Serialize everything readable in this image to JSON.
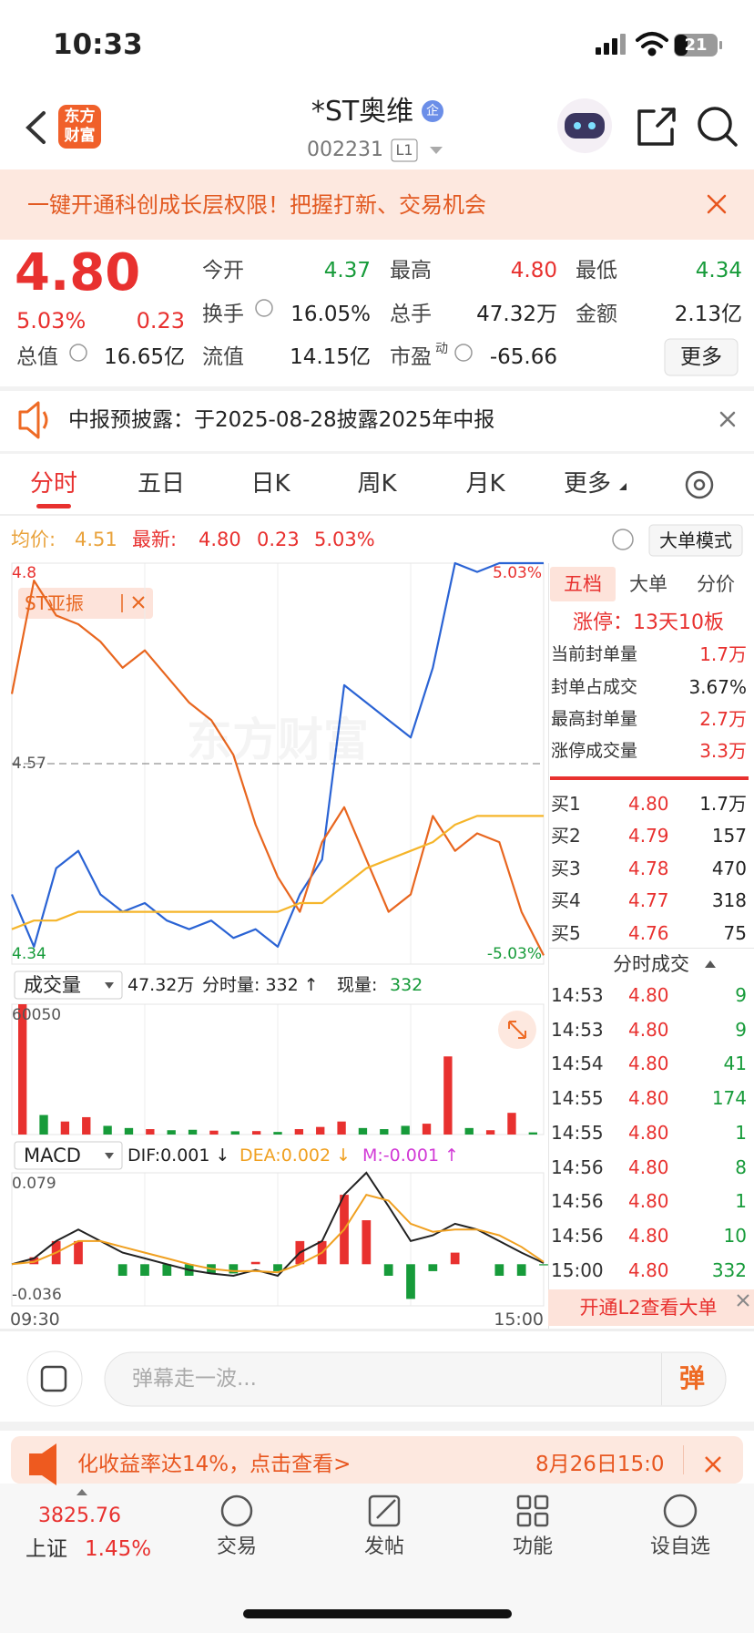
{
  "status_bar": {
    "time": "10:33",
    "battery": "21"
  },
  "header": {
    "logo": "东方财富",
    "title": "*ST奥维",
    "badge": "企",
    "code": "002231",
    "level": "L1"
  },
  "banner": {
    "text": "一键开通科创成长层权限！把握打新、交易机会"
  },
  "quote": {
    "price": "4.80",
    "change_pct": "5.03%",
    "change": "0.23",
    "fields": [
      {
        "label": "今开",
        "value": "4.37"
      },
      {
        "label": "最高",
        "value": "4.80"
      },
      {
        "label": "最低",
        "value": "4.34"
      },
      {
        "label": "换手",
        "value": "16.05%"
      },
      {
        "label": "总手",
        "value": "47.32万"
      },
      {
        "label": "金额",
        "value": "2.13亿"
      },
      {
        "label": "总值",
        "value": "16.65亿"
      },
      {
        "label": "流值",
        "value": "14.15亿"
      },
      {
        "label": "市盈",
        "sup": "动",
        "value": "-65.66"
      }
    ],
    "more": "更多"
  },
  "notice": {
    "text": "中报预披露：于2025-08-28披露2025年中报"
  },
  "tabs": [
    "分时",
    "五日",
    "日K",
    "周K",
    "月K",
    "更多"
  ],
  "chart_info": {
    "avg_label": "均价:",
    "avg": "4.51",
    "last_label": "最新:",
    "last": "4.80",
    "change": "0.23",
    "change_pct": "5.03%",
    "mode": "大单模式"
  },
  "watermark": "东方财富",
  "chart_data": [
    {
      "type": "line",
      "ylim": [
        4.34,
        4.8
      ],
      "yticks": [
        4.34,
        4.57,
        4.8
      ],
      "y2lim": [
        -5.03,
        5.03
      ],
      "y2ticks": [
        {
          "value": -5.03,
          "label": "-5.03%"
        },
        {
          "value": 5.03,
          "label": "5.03%"
        }
      ],
      "series": [
        {
          "color": "#2a63d4",
          "values": [
            4.42,
            4.36,
            4.45,
            4.47,
            4.42,
            4.4,
            4.41,
            4.39,
            4.38,
            4.39,
            4.37,
            4.38,
            4.36,
            4.42,
            4.46,
            4.66,
            4.64,
            4.62,
            4.6,
            4.68,
            4.8,
            4.79,
            4.8,
            4.8,
            4.8
          ]
        },
        {
          "name": "ST亚振",
          "color": "#e8661f",
          "values": [
            4.65,
            4.78,
            4.74,
            4.73,
            4.71,
            4.68,
            4.7,
            4.67,
            4.64,
            4.62,
            4.58,
            4.5,
            4.44,
            4.4,
            4.48,
            4.52,
            4.46,
            4.4,
            4.42,
            4.51,
            4.47,
            4.49,
            4.48,
            4.4,
            4.35
          ]
        },
        {
          "color": "#f5b52a",
          "values": [
            4.38,
            4.39,
            4.39,
            4.4,
            4.4,
            4.4,
            4.4,
            4.4,
            4.4,
            4.4,
            4.4,
            4.4,
            4.4,
            4.41,
            4.41,
            4.43,
            4.45,
            4.46,
            4.47,
            4.48,
            4.5,
            4.51,
            4.51,
            4.51,
            4.51
          ]
        }
      ]
    },
    {
      "type": "bar",
      "title": "成交量",
      "header": [
        "47.32万",
        "分时量: 332 ↑",
        "现量:",
        "332"
      ],
      "ylim": [
        0,
        60050
      ],
      "yticks": [
        60050
      ],
      "values": [
        60050,
        9000,
        6000,
        8000,
        4000,
        3000,
        2500,
        2000,
        2200,
        1800,
        1500,
        1600,
        1200,
        2500,
        3500,
        6000,
        3000,
        2500,
        4000,
        5000,
        36000,
        3000,
        2000,
        10000,
        1000
      ],
      "colors": [
        "#e8312f",
        "#179b3a",
        "#e8312f",
        "#e8312f",
        "#179b3a",
        "#179b3a",
        "#e8312f",
        "#179b3a",
        "#179b3a",
        "#e8312f",
        "#179b3a",
        "#e8312f",
        "#179b3a",
        "#e8312f",
        "#e8312f",
        "#e8312f",
        "#179b3a",
        "#179b3a",
        "#179b3a",
        "#e8312f",
        "#e8312f",
        "#179b3a",
        "#e8312f",
        "#e8312f",
        "#179b3a"
      ]
    },
    {
      "type": "macd",
      "title": "MACD",
      "indicators": [
        "DIF:0.001 ↓",
        "DEA:0.002 ↓",
        "M:-0.001 ↑"
      ],
      "indicator_colors": [
        "#222222",
        "#f0a020",
        "#d23bd6"
      ],
      "categories": [
        "09:30",
        null,
        null,
        null,
        null,
        null,
        null,
        null,
        null,
        null,
        null,
        null,
        null,
        null,
        null,
        null,
        null,
        null,
        null,
        null,
        null,
        null,
        null,
        null,
        "15:00"
      ],
      "ylim": [
        -0.036,
        0.079
      ],
      "yticks": [
        0.079,
        -0.036
      ],
      "up_color": "#e8312f",
      "down_color": "#179b3a",
      "series": [
        {
          "color": "#222222",
          "values": [
            0,
            0.005,
            0.02,
            0.03,
            0.02,
            0.01,
            0.005,
            0,
            -0.005,
            -0.008,
            -0.01,
            -0.005,
            -0.01,
            0.01,
            0.02,
            0.06,
            0.079,
            0.05,
            0.02,
            0.025,
            0.035,
            0.03,
            0.02,
            0.01,
            0.001
          ]
        },
        {
          "color": "#f0a020",
          "values": [
            0,
            0.002,
            0.01,
            0.02,
            0.02,
            0.015,
            0.01,
            0.005,
            0,
            -0.004,
            -0.006,
            -0.006,
            -0.007,
            0,
            0.01,
            0.03,
            0.06,
            0.055,
            0.035,
            0.028,
            0.03,
            0.03,
            0.025,
            0.015,
            0.002
          ]
        }
      ],
      "bars": [
        0,
        0.006,
        0.02,
        0.02,
        0,
        -0.01,
        -0.01,
        -0.01,
        -0.01,
        -0.008,
        -0.008,
        0.002,
        -0.006,
        0.02,
        0.02,
        0.06,
        0.038,
        -0.01,
        -0.03,
        -0.006,
        0.01,
        0,
        -0.01,
        -0.01,
        -0.001
      ]
    }
  ],
  "order_book": {
    "tabs": [
      "五档",
      "大单",
      "分价"
    ],
    "limit": "涨停：13天10板",
    "stats": [
      [
        "当前封单量",
        "1.7万"
      ],
      [
        "封单占成交",
        "3.67%"
      ],
      [
        "最高封单量",
        "2.7万"
      ],
      [
        "涨停成交量",
        "3.3万"
      ]
    ],
    "bids": [
      [
        "买1",
        "4.80",
        "1.7万"
      ],
      [
        "买2",
        "4.79",
        "157"
      ],
      [
        "买3",
        "4.78",
        "470"
      ],
      [
        "买4",
        "4.77",
        "318"
      ],
      [
        "买5",
        "4.76",
        "75"
      ]
    ]
  },
  "trades": {
    "title": "分时成交",
    "rows": [
      [
        "14:53",
        "4.80",
        "9"
      ],
      [
        "14:53",
        "4.80",
        "9"
      ],
      [
        "14:54",
        "4.80",
        "41"
      ],
      [
        "14:55",
        "4.80",
        "174"
      ],
      [
        "14:55",
        "4.80",
        "1"
      ],
      [
        "14:56",
        "4.80",
        "8"
      ],
      [
        "14:56",
        "4.80",
        "1"
      ],
      [
        "14:56",
        "4.80",
        "10"
      ],
      [
        "15:00",
        "4.80",
        "332"
      ]
    ],
    "cta": "开通L2查看大单"
  },
  "comment": {
    "placeholder": "弹幕走一波...",
    "button": "弹"
  },
  "ad": {
    "text": "化收益率达14%，点击查看>",
    "date": "8月26日15:0"
  },
  "nav": {
    "index_value": "3825.76",
    "index_name": "上证",
    "index_change": "1.45%",
    "items": [
      "交易",
      "发帖",
      "功能",
      "设自选"
    ]
  }
}
